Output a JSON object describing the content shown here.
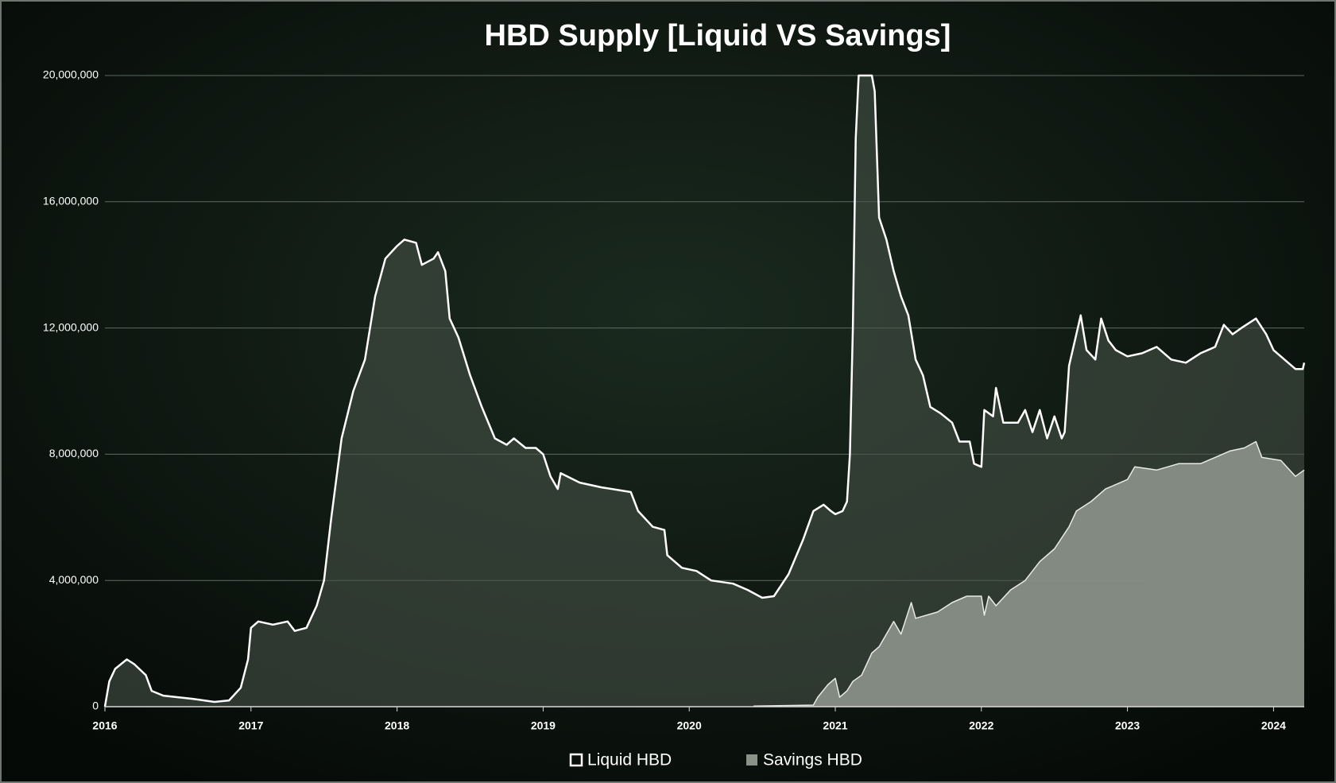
{
  "chart_data": {
    "type": "area",
    "title": "HBD Supply [Liquid VS Savings]",
    "xlim": [
      2016,
      2024.21
    ],
    "xticks": [
      2016,
      2017,
      2018,
      2019,
      2020,
      2021,
      2022,
      2023,
      2024
    ],
    "ylim": [
      0,
      20000000
    ],
    "yticks": [
      0,
      {
        "value": 4000000,
        "label": "4,000,000"
      },
      {
        "value": 8000000,
        "label": "8,000,000"
      },
      {
        "value": 12000000,
        "label": "12,000,000"
      },
      {
        "value": 16000000,
        "label": "16,000,000"
      },
      {
        "value": 20000000,
        "label": "20,000,000"
      }
    ],
    "grid": true,
    "legend": "bottom",
    "series": [
      {
        "name": "Liquid HBD",
        "color": "#ffffff",
        "x": [
          2016.0,
          2016.03,
          2016.07,
          2016.15,
          2016.2,
          2016.28,
          2016.32,
          2016.4,
          2016.6,
          2016.75,
          2016.85,
          2016.93,
          2016.98,
          2017.0,
          2017.05,
          2017.15,
          2017.25,
          2017.3,
          2017.38,
          2017.45,
          2017.5,
          2017.55,
          2017.62,
          2017.7,
          2017.78,
          2017.85,
          2017.92,
          2018.0,
          2018.05,
          2018.13,
          2018.17,
          2018.25,
          2018.28,
          2018.33,
          2018.36,
          2018.42,
          2018.5,
          2018.58,
          2018.67,
          2018.75,
          2018.8,
          2018.88,
          2018.95,
          2019.0,
          2019.05,
          2019.1,
          2019.12,
          2019.25,
          2019.4,
          2019.6,
          2019.65,
          2019.75,
          2019.83,
          2019.85,
          2019.95,
          2020.05,
          2020.15,
          2020.3,
          2020.4,
          2020.5,
          2020.58,
          2020.68,
          2020.78,
          2020.85,
          2020.92,
          2020.97,
          2021.0,
          2021.05,
          2021.08,
          2021.1,
          2021.12,
          2021.14,
          2021.16,
          2021.25,
          2021.27,
          2021.3,
          2021.35,
          2021.4,
          2021.45,
          2021.5,
          2021.55,
          2021.6,
          2021.65,
          2021.72,
          2021.8,
          2021.85,
          2021.92,
          2021.95,
          2022.0,
          2022.02,
          2022.08,
          2022.1,
          2022.15,
          2022.25,
          2022.3,
          2022.35,
          2022.4,
          2022.45,
          2022.5,
          2022.55,
          2022.57,
          2022.6,
          2022.65,
          2022.68,
          2022.72,
          2022.78,
          2022.82,
          2022.87,
          2022.92,
          2023.0,
          2023.1,
          2023.2,
          2023.3,
          2023.4,
          2023.5,
          2023.6,
          2023.66,
          2023.72,
          2023.78,
          2023.88,
          2023.95,
          2024.0,
          2024.1,
          2024.15,
          2024.2,
          2024.21
        ],
        "values": [
          0,
          800000,
          1200000,
          1500000,
          1350000,
          1000000,
          500000,
          350000,
          250000,
          150000,
          200000,
          600000,
          1500000,
          2500000,
          2700000,
          2600000,
          2700000,
          2400000,
          2500000,
          3200000,
          4000000,
          6000000,
          8500000,
          10000000,
          11000000,
          13000000,
          14200000,
          14600000,
          14800000,
          14700000,
          14000000,
          14200000,
          14400000,
          13800000,
          12300000,
          11700000,
          10500000,
          9500000,
          8500000,
          8300000,
          8500000,
          8200000,
          8200000,
          8000000,
          7300000,
          6900000,
          7400000,
          7100000,
          6950000,
          6800000,
          6200000,
          5700000,
          5600000,
          4800000,
          4400000,
          4300000,
          4000000,
          3900000,
          3700000,
          3450000,
          3500000,
          4200000,
          5300000,
          6200000,
          6400000,
          6200000,
          6100000,
          6200000,
          6500000,
          8000000,
          12000000,
          18000000,
          20000000,
          20000000,
          19500000,
          15500000,
          14800000,
          13800000,
          13000000,
          12400000,
          11000000,
          10500000,
          9500000,
          9300000,
          9000000,
          8400000,
          8400000,
          7700000,
          7600000,
          9400000,
          9200000,
          10100000,
          9000000,
          9000000,
          9400000,
          8700000,
          9400000,
          8500000,
          9200000,
          8500000,
          8700000,
          10800000,
          11800000,
          12400000,
          11300000,
          11000000,
          12300000,
          11600000,
          11300000,
          11100000,
          11200000,
          11400000,
          11000000,
          10900000,
          11200000,
          11400000,
          12100000,
          11800000,
          12000000,
          12300000,
          11800000,
          11300000,
          10900000,
          10700000,
          10700000,
          10900000
        ]
      },
      {
        "name": "Savings HBD",
        "color": "#8a9189",
        "x": [
          2020.44,
          2020.85,
          2020.88,
          2020.95,
          2021.0,
          2021.03,
          2021.08,
          2021.12,
          2021.18,
          2021.25,
          2021.3,
          2021.35,
          2021.4,
          2021.45,
          2021.52,
          2021.55,
          2021.7,
          2021.8,
          2021.9,
          2022.0,
          2022.02,
          2022.05,
          2022.1,
          2022.2,
          2022.3,
          2022.4,
          2022.5,
          2022.6,
          2022.65,
          2022.75,
          2022.85,
          2023.0,
          2023.05,
          2023.2,
          2023.35,
          2023.5,
          2023.6,
          2023.7,
          2023.8,
          2023.88,
          2023.92,
          2024.05,
          2024.15,
          2024.21
        ],
        "values": [
          20000,
          50000,
          300000,
          700000,
          900000,
          300000,
          500000,
          800000,
          1000000,
          1700000,
          1900000,
          2300000,
          2700000,
          2300000,
          3300000,
          2800000,
          3000000,
          3300000,
          3500000,
          3500000,
          2900000,
          3500000,
          3200000,
          3700000,
          4000000,
          4600000,
          5000000,
          5700000,
          6200000,
          6500000,
          6900000,
          7200000,
          7600000,
          7500000,
          7700000,
          7700000,
          7900000,
          8100000,
          8200000,
          8400000,
          7900000,
          7800000,
          7300000,
          7500000
        ]
      }
    ]
  }
}
